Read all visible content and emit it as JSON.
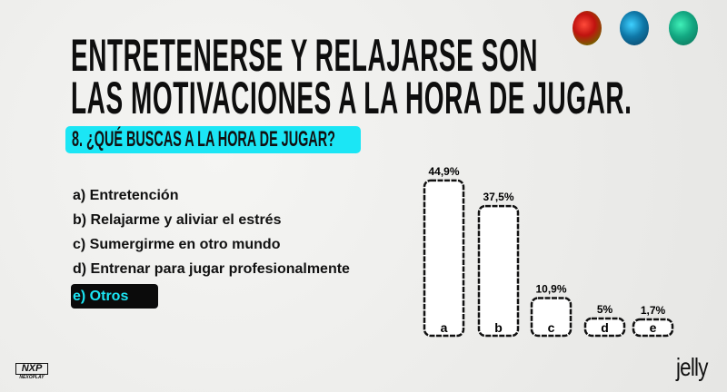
{
  "title_lines": [
    "ENTRETENERSE Y RELAJARSE SON",
    "LAS MOTIVACIONES A LA HORA DE JUGAR."
  ],
  "question": "8. ¿QUÉ BUSCAS A LA HORA DE JUGAR?",
  "options": [
    "a) Entretención",
    "b) Relajarme y aliviar el estrés",
    "c) Sumergirme en otro mundo",
    "d) Entrenar para jugar profesionalmente",
    "e) Otros"
  ],
  "highlight_color": "#1be6f5",
  "logos": {
    "left_mark": "NXP",
    "left_name": "NEXOPLAY",
    "right": "jelly"
  },
  "chart_data": {
    "type": "bar",
    "title": "8. ¿QUÉ BUSCAS A LA HORA DE JUGAR?",
    "categories": [
      "a",
      "b",
      "c",
      "d",
      "e"
    ],
    "values": [
      44.9,
      37.5,
      10.9,
      5,
      1.7
    ],
    "labels": [
      "44,9%",
      "37,5%",
      "10,9%",
      "5%",
      "1,7%"
    ],
    "unit": "%",
    "ylim": [
      0,
      45
    ],
    "grid": false
  }
}
